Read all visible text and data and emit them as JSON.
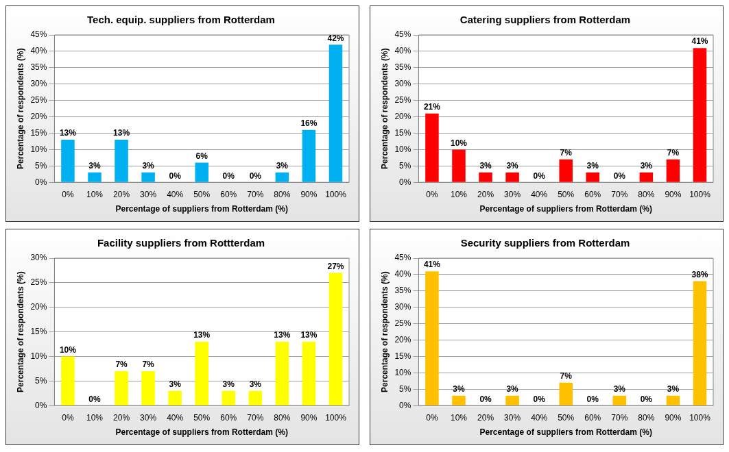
{
  "chart_data": [
    {
      "type": "bar",
      "title": "Tech. equip. suppliers from Rotterdam",
      "xlabel": "Percentage of suppliers from Rotterdam (%)",
      "ylabel": "Percentage of respondents (%)",
      "categories": [
        "0%",
        "10%",
        "20%",
        "30%",
        "40%",
        "50%",
        "60%",
        "70%",
        "80%",
        "90%",
        "100%"
      ],
      "values": [
        13,
        3,
        13,
        3,
        0,
        6,
        0,
        0,
        3,
        16,
        42
      ],
      "value_labels": [
        "13%",
        "3%",
        "13%",
        "3%",
        "0%",
        "6%",
        "0%",
        "0%",
        "3%",
        "16%",
        "42%"
      ],
      "color": "#00b0f0",
      "ylim": [
        0,
        45
      ],
      "yticks": [
        {
          "value": 0,
          "label": "0%"
        },
        {
          "value": 5,
          "label": "5%"
        },
        {
          "value": 10,
          "label": "10%"
        },
        {
          "value": 15,
          "label": "15%"
        },
        {
          "value": 20,
          "label": "20%"
        },
        {
          "value": 25,
          "label": "25%"
        },
        {
          "value": 30,
          "label": "30%"
        },
        {
          "value": 35,
          "label": "35%"
        },
        {
          "value": 40,
          "label": "40%"
        },
        {
          "value": 45,
          "label": "45%"
        }
      ],
      "grid": "y",
      "legend": false
    },
    {
      "type": "bar",
      "title": "Catering suppliers from Rotterdam",
      "xlabel": "Percentage of suppliers from Rotterdam (%)",
      "ylabel": "Percentage of respondents (%)",
      "categories": [
        "0%",
        "10%",
        "20%",
        "30%",
        "40%",
        "50%",
        "60%",
        "70%",
        "80%",
        "90%",
        "100%"
      ],
      "values": [
        21,
        10,
        3,
        3,
        0,
        7,
        3,
        0,
        3,
        7,
        41
      ],
      "value_labels": [
        "21%",
        "10%",
        "3%",
        "3%",
        "0%",
        "7%",
        "3%",
        "0%",
        "3%",
        "7%",
        "41%"
      ],
      "color": "#ff0000",
      "ylim": [
        0,
        45
      ],
      "yticks": [
        {
          "value": 0,
          "label": "0%"
        },
        {
          "value": 5,
          "label": "5%"
        },
        {
          "value": 10,
          "label": "10%"
        },
        {
          "value": 15,
          "label": "15%"
        },
        {
          "value": 20,
          "label": "20%"
        },
        {
          "value": 25,
          "label": "25%"
        },
        {
          "value": 30,
          "label": "30%"
        },
        {
          "value": 35,
          "label": "35%"
        },
        {
          "value": 40,
          "label": "40%"
        },
        {
          "value": 45,
          "label": "45%"
        }
      ],
      "grid": "y",
      "legend": false
    },
    {
      "type": "bar",
      "title": "Facility suppliers from Rottterdam",
      "xlabel": "Percentage of suppliers from Rotterdam (%)",
      "ylabel": "Percentage of respondents (%)",
      "categories": [
        "0%",
        "10%",
        "20%",
        "30%",
        "40%",
        "50%",
        "60%",
        "70%",
        "80%",
        "90%",
        "100%"
      ],
      "values": [
        10,
        0,
        7,
        7,
        3,
        13,
        3,
        3,
        13,
        13,
        27
      ],
      "value_labels": [
        "10%",
        "0%",
        "7%",
        "7%",
        "3%",
        "13%",
        "3%",
        "3%",
        "13%",
        "13%",
        "27%"
      ],
      "color": "#ffff00",
      "ylim": [
        0,
        30
      ],
      "yticks": [
        {
          "value": 0,
          "label": "0%"
        },
        {
          "value": 5,
          "label": "5%"
        },
        {
          "value": 10,
          "label": "10%"
        },
        {
          "value": 15,
          "label": "15%"
        },
        {
          "value": 20,
          "label": "20%"
        },
        {
          "value": 25,
          "label": "25%"
        },
        {
          "value": 30,
          "label": "30%"
        }
      ],
      "grid": "y",
      "legend": false
    },
    {
      "type": "bar",
      "title": "Security suppliers from Rotterdam",
      "xlabel": "Percentage of suppliers from Rotterdam (%)",
      "ylabel": "Percentage of respondents (%)",
      "categories": [
        "0%",
        "10%",
        "20%",
        "30%",
        "40%",
        "50%",
        "60%",
        "70%",
        "80%",
        "90%",
        "100%"
      ],
      "values": [
        41,
        3,
        0,
        3,
        0,
        7,
        0,
        3,
        0,
        3,
        38
      ],
      "value_labels": [
        "41%",
        "3%",
        "0%",
        "3%",
        "0%",
        "7%",
        "0%",
        "3%",
        "0%",
        "3%",
        "38%"
      ],
      "color": "#ffc000",
      "ylim": [
        0,
        45
      ],
      "yticks": [
        {
          "value": 0,
          "label": "0%"
        },
        {
          "value": 5,
          "label": "5%"
        },
        {
          "value": 10,
          "label": "10%"
        },
        {
          "value": 15,
          "label": "15%"
        },
        {
          "value": 20,
          "label": "20%"
        },
        {
          "value": 25,
          "label": "25%"
        },
        {
          "value": 30,
          "label": "30%"
        },
        {
          "value": 35,
          "label": "35%"
        },
        {
          "value": 40,
          "label": "40%"
        },
        {
          "value": 45,
          "label": "45%"
        }
      ],
      "grid": "y",
      "legend": false
    }
  ]
}
